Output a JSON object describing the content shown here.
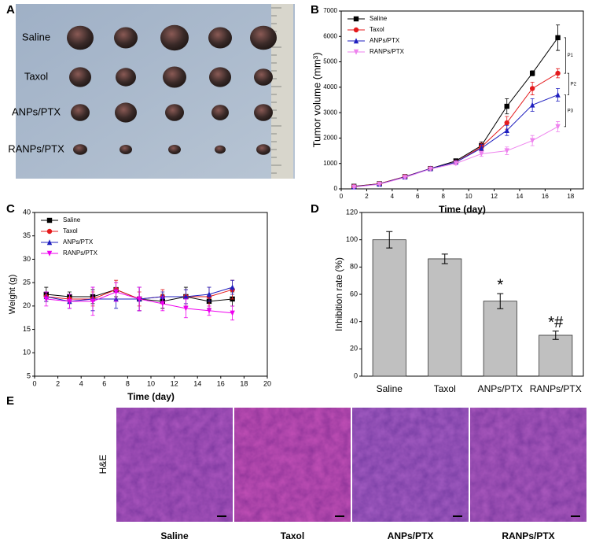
{
  "panel_labels": [
    "A",
    "B",
    "C",
    "D",
    "E"
  ],
  "photo": {
    "rows": [
      "Saline",
      "Taxol",
      "ANPs/PTX",
      "RANPs/PTX"
    ]
  },
  "chart_data": [
    {
      "type": "line",
      "x_label": "Time (day)",
      "y_label": "Tumor volume (mm³)",
      "x": [
        1,
        3,
        5,
        7,
        9,
        11,
        13,
        15,
        17
      ],
      "series": [
        {
          "name": "Saline",
          "color": "#000000",
          "marker": "square",
          "values": [
            100,
            200,
            480,
            800,
            1100,
            1700,
            3250,
            4550,
            5950
          ],
          "errors": [
            50,
            50,
            40,
            50,
            60,
            150,
            300,
            100,
            500
          ]
        },
        {
          "name": "Taxol",
          "color": "#e41a1c",
          "marker": "circle",
          "values": [
            90,
            200,
            480,
            800,
            1050,
            1650,
            2600,
            3950,
            4550
          ],
          "errors": [
            50,
            40,
            40,
            40,
            50,
            150,
            250,
            250,
            180
          ]
        },
        {
          "name": "ANPs/PTX",
          "color": "#1f1fbf",
          "marker": "triangle-up",
          "values": [
            80,
            190,
            470,
            800,
            1050,
            1600,
            2300,
            3300,
            3700
          ],
          "errors": [
            40,
            40,
            40,
            40,
            50,
            150,
            200,
            250,
            250
          ]
        },
        {
          "name": "RANPs/PTX",
          "color": "#ee82ee",
          "marker": "triangle-down",
          "values": [
            70,
            180,
            450,
            780,
            1000,
            1380,
            1500,
            1900,
            2450
          ],
          "errors": [
            30,
            30,
            30,
            40,
            50,
            100,
            150,
            200,
            200
          ]
        }
      ],
      "annotations": [
        "P1",
        "P2",
        "P3"
      ],
      "xlim": [
        0,
        19
      ],
      "xticks": [
        0,
        2,
        4,
        6,
        8,
        10,
        12,
        14,
        16,
        18
      ],
      "ylim": [
        0,
        7000
      ],
      "yticks": [
        0,
        1000,
        2000,
        3000,
        4000,
        5000,
        6000,
        7000
      ],
      "legend": "upper left"
    },
    {
      "type": "line",
      "x_label": "Time (day)",
      "y_label": "Weight (g)",
      "x": [
        1,
        3,
        5,
        7,
        9,
        11,
        13,
        15,
        17
      ],
      "series": [
        {
          "name": "Saline",
          "color": "#000000",
          "marker": "square",
          "values": [
            22.5,
            22,
            22,
            23.5,
            21.5,
            21,
            22,
            21,
            21.5
          ],
          "errors": [
            1.5,
            1,
            1.5,
            1.5,
            2.5,
            1.5,
            2,
            1.5,
            1.5
          ]
        },
        {
          "name": "Taxol",
          "color": "#e41a1c",
          "marker": "circle",
          "values": [
            22,
            21.5,
            21.5,
            23.5,
            21.5,
            22,
            22,
            22,
            23.5
          ],
          "errors": [
            1,
            1,
            1.5,
            2,
            1.5,
            1.5,
            1.5,
            2,
            2
          ]
        },
        {
          "name": "ANPs/PTX",
          "color": "#1f1fbf",
          "marker": "triangle-up",
          "values": [
            22,
            21,
            21.5,
            21.5,
            21.5,
            22,
            22,
            22.5,
            24
          ],
          "errors": [
            1,
            1.5,
            2.5,
            2,
            2.5,
            1,
            1.5,
            1.5,
            1.5
          ]
        },
        {
          "name": "RANPs/PTX",
          "color": "#ee00ee",
          "marker": "triangle-down",
          "values": [
            21.5,
            21,
            21,
            23,
            21.5,
            20.5,
            19.5,
            19,
            18.5
          ],
          "errors": [
            1.5,
            1.5,
            3,
            2,
            2.5,
            1.5,
            2,
            1,
            1.5
          ]
        }
      ],
      "xlim": [
        0,
        20
      ],
      "xticks": [
        0,
        2,
        4,
        6,
        8,
        10,
        12,
        14,
        16,
        18,
        20
      ],
      "ylim": [
        5,
        40
      ],
      "yticks": [
        5,
        10,
        15,
        20,
        25,
        30,
        35,
        40
      ],
      "legend": "upper left"
    },
    {
      "type": "bar",
      "y_label": "Inhibition rate (%)",
      "categories": [
        "Saline",
        "Taxol",
        "ANPs/PTX",
        "RANPs/PTX"
      ],
      "values": [
        100,
        86,
        55,
        30
      ],
      "errors": [
        6,
        3.5,
        5.5,
        3
      ],
      "color": "#c0c0c0",
      "annotations": [
        {
          "category": "ANPs/PTX",
          "text": "*"
        },
        {
          "category": "RANPs/PTX",
          "text": "*#"
        }
      ],
      "ylim": [
        0,
        120
      ],
      "yticks": [
        0,
        20,
        40,
        60,
        80,
        100,
        120
      ]
    }
  ],
  "histology": {
    "stain": "H&E",
    "labels": [
      "Saline",
      "Taxol",
      "ANPs/PTX",
      "RANPs/PTX"
    ]
  }
}
